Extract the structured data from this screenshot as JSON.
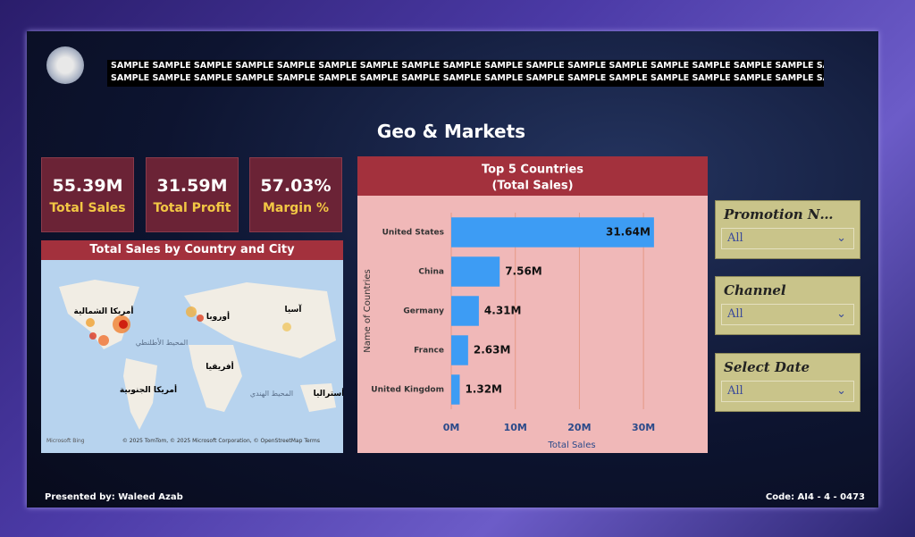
{
  "header": {
    "banner": [
      "SAMPLE SAMPLE SAMPLE SAMPLE SAMPLE SAMPLE SAMPLE SAMPLE SAMPLE SAMPLE SAMPLE SAMPLE SAMPLE SAMPLE SAMPLE SAMPLE SAMPLE SAMPLE SAMPLE SAMPLE",
      "SAMPLE SAMPLE SAMPLE SAMPLE SAMPLE SAMPLE SAMPLE SAMPLE SAMPLE SAMPLE SAMPLE SAMPLE SAMPLE SAMPLE SAMPLE SAMPLE SAMPLE SAMPLE SAMPLE SAMPLE"
    ]
  },
  "title": "Geo & Markets",
  "kpis": [
    {
      "value": "55.39M",
      "label": "Total Sales"
    },
    {
      "value": "31.59M",
      "label": "Total Profit"
    },
    {
      "value": "57.03%",
      "label": "Margin %"
    }
  ],
  "map": {
    "title": "Total Sales by Country and City",
    "places": [
      "أمريكا الشمالية",
      "أوروبا",
      "آسيا",
      "المحيط الأطلنطي",
      "أفريقيا",
      "أمريكا الجنوبية",
      "المحيط الهندي",
      "أستراليا"
    ],
    "brand": "Microsoft Bing",
    "attribution": "© 2025 TomTom, © 2025 Microsoft Corporation, © OpenStreetMap Terms"
  },
  "chart_data": {
    "type": "bar",
    "title": "Top 5 Countries",
    "subtitle": "(Total Sales)",
    "categories": [
      "United States",
      "China",
      "Germany",
      "France",
      "United Kingdom"
    ],
    "values": [
      31640000,
      7560000,
      4310000,
      2630000,
      1320000
    ],
    "value_labels": [
      "31.64M",
      "7.56M",
      "4.31M",
      "2.63M",
      "1.32M"
    ],
    "color": "#3d9cf4",
    "xlim": [
      0,
      38000000
    ],
    "xticks": [
      {
        "value": 0,
        "label": "0M"
      },
      {
        "value": 10000000,
        "label": "10M"
      },
      {
        "value": 20000000,
        "label": "20M"
      },
      {
        "value": 30000000,
        "label": "30M"
      }
    ],
    "xlabel": "Total Sales",
    "ylabel": "Name of Countries",
    "grid": true
  },
  "slicers": [
    {
      "title": "Promotion N…",
      "value": "All"
    },
    {
      "title": "Channel",
      "value": "All"
    },
    {
      "title": "Select Date",
      "value": "All"
    }
  ],
  "footer": {
    "left": "Presented by: Waleed Azab",
    "right": "Code: AI4 - 4 - 0473"
  }
}
